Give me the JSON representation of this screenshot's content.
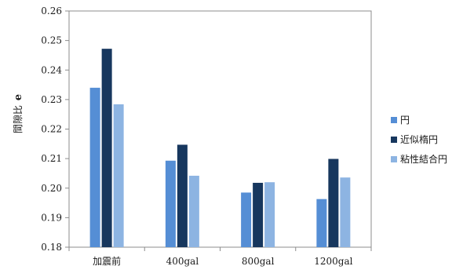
{
  "chart_data": {
    "type": "bar",
    "title": "",
    "xlabel": "",
    "ylabel": "間隙比",
    "ylabel_symbol": "e",
    "ylim": [
      0.18,
      0.26
    ],
    "yticks": [
      0.18,
      0.19,
      0.2,
      0.21,
      0.22,
      0.23,
      0.24,
      0.25,
      0.26
    ],
    "ytick_labels": [
      "0.18",
      "0.19",
      "0.20",
      "0.21",
      "0.22",
      "0.23",
      "0.24",
      "0.25",
      "0.26"
    ],
    "categories": [
      "加震前",
      "400gal",
      "800gal",
      "1200gal"
    ],
    "series": [
      {
        "name": "円",
        "color": "#558ED5",
        "values": [
          0.234,
          0.2093,
          0.1985,
          0.1963
        ]
      },
      {
        "name": "近似楕円",
        "color": "#17375E",
        "values": [
          0.2472,
          0.2147,
          0.2018,
          0.2099
        ]
      },
      {
        "name": "粘性結合円",
        "color": "#8DB4E2",
        "values": [
          0.2284,
          0.2042,
          0.202,
          0.2036
        ]
      }
    ],
    "grid": false,
    "legend_position": "right"
  }
}
